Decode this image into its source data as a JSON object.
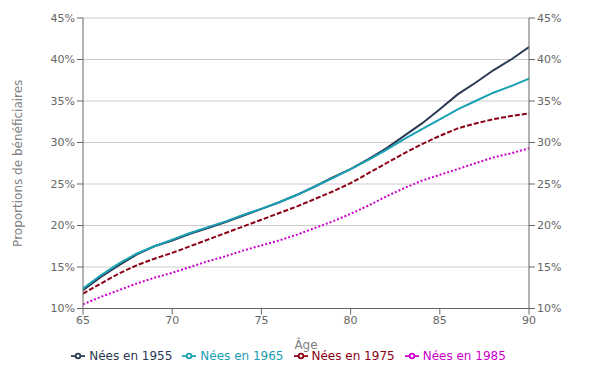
{
  "chart_data": {
    "type": "line",
    "title": "",
    "xlabel": "Âge",
    "ylabel": "Proportions de bénéficiaires",
    "x": [
      65,
      66,
      67,
      68,
      69,
      70,
      71,
      72,
      73,
      74,
      75,
      76,
      77,
      78,
      79,
      80,
      81,
      82,
      83,
      84,
      85,
      86,
      87,
      88,
      89,
      90
    ],
    "series": [
      {
        "name": "Nées en 1955",
        "color": "#2b3a52",
        "line_style": "solid",
        "values": [
          0.122,
          0.138,
          0.152,
          0.165,
          0.175,
          0.182,
          0.19,
          0.197,
          0.204,
          0.212,
          0.22,
          0.228,
          0.237,
          0.247,
          0.258,
          0.268,
          0.28,
          0.293,
          0.308,
          0.323,
          0.34,
          0.358,
          0.372,
          0.387,
          0.4,
          0.415
        ]
      },
      {
        "name": "Nées en 1965",
        "color": "#1aa0b4",
        "line_style": "solid",
        "values": [
          0.124,
          0.14,
          0.154,
          0.166,
          0.175,
          0.183,
          0.191,
          0.198,
          0.205,
          0.213,
          0.22,
          0.228,
          0.237,
          0.247,
          0.257,
          0.268,
          0.279,
          0.291,
          0.304,
          0.316,
          0.328,
          0.34,
          0.35,
          0.36,
          0.368,
          0.377
        ]
      },
      {
        "name": "Nées en 1975",
        "color": "#8b0015",
        "line_style": "dashed",
        "values": [
          0.118,
          0.13,
          0.142,
          0.152,
          0.16,
          0.167,
          0.175,
          0.183,
          0.191,
          0.199,
          0.207,
          0.215,
          0.223,
          0.232,
          0.241,
          0.251,
          0.263,
          0.275,
          0.287,
          0.298,
          0.308,
          0.317,
          0.323,
          0.328,
          0.332,
          0.335
        ]
      },
      {
        "name": "Nées en 1985",
        "color": "#cc00cc",
        "line_style": "dotted",
        "values": [
          0.105,
          0.114,
          0.122,
          0.13,
          0.137,
          0.143,
          0.15,
          0.157,
          0.163,
          0.17,
          0.176,
          0.182,
          0.189,
          0.197,
          0.205,
          0.214,
          0.224,
          0.235,
          0.245,
          0.254,
          0.261,
          0.268,
          0.275,
          0.282,
          0.287,
          0.293
        ]
      }
    ],
    "xlim": [
      65,
      90
    ],
    "xticks": [
      65,
      70,
      75,
      80,
      85,
      90
    ],
    "ylim": [
      0.1,
      0.45
    ],
    "yticks": [
      {
        "value": 0.1,
        "label": "10%"
      },
      {
        "value": 0.15,
        "label": "15%"
      },
      {
        "value": 0.2,
        "label": "20%"
      },
      {
        "value": 0.25,
        "label": "25%"
      },
      {
        "value": 0.3,
        "label": "30%"
      },
      {
        "value": 0.35,
        "label": "35%"
      },
      {
        "value": 0.4,
        "label": "40%"
      },
      {
        "value": 0.45,
        "label": "45%"
      }
    ],
    "y2lim": [
      0.1,
      0.45
    ],
    "y2ticks": [
      {
        "value": 0.1,
        "label": "10%"
      },
      {
        "value": 0.15,
        "label": "15%"
      },
      {
        "value": 0.2,
        "label": "20%"
      },
      {
        "value": 0.25,
        "label": "25%"
      },
      {
        "value": 0.3,
        "label": "30%"
      },
      {
        "value": 0.35,
        "label": "35%"
      },
      {
        "value": 0.4,
        "label": "40%"
      },
      {
        "value": 0.45,
        "label": "45%"
      }
    ],
    "grid": "y",
    "legend": "bottom"
  }
}
